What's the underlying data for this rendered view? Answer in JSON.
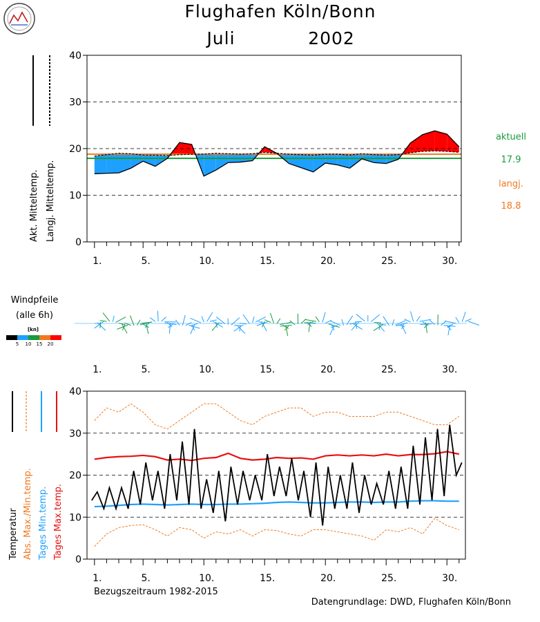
{
  "title_line1": "Flughafen Köln/Bonn",
  "title_month": "Juli",
  "title_year": "2002",
  "top_chart": {
    "type": "line",
    "ylim": [
      0,
      40
    ],
    "y_ticks": [
      "0",
      "10",
      "20",
      "30",
      "40"
    ],
    "x_ticks": [
      "1.",
      "5.",
      "10.",
      "15.",
      "20.",
      "25.",
      "30."
    ],
    "legend_actual_label": "Akt. Mitteltemp.",
    "legend_longterm_label": "Langj. Mitteltemp.",
    "right_label_actual": "aktuell",
    "right_value_actual": "17.9",
    "right_label_longterm": "langj.",
    "right_value_longterm": "18.8",
    "colors": {
      "above": "#ff0000",
      "below": "#1ea0ff",
      "actual_mean": "#1a9a3c",
      "longterm_mean": "#f07820"
    },
    "days": [
      1,
      2,
      3,
      4,
      5,
      6,
      7,
      8,
      9,
      10,
      11,
      12,
      13,
      14,
      15,
      16,
      17,
      18,
      19,
      20,
      21,
      22,
      23,
      24,
      25,
      26,
      27,
      28,
      29,
      30,
      31
    ],
    "actual_mean": [
      14.6,
      14.7,
      14.8,
      15.8,
      17.3,
      16.2,
      17.9,
      21.3,
      20.9,
      14.1,
      15.4,
      17.0,
      17.1,
      17.4,
      20.4,
      19.0,
      16.8,
      15.9,
      15.0,
      16.9,
      16.5,
      15.8,
      17.8,
      17.0,
      16.8,
      17.7,
      21.2,
      23.0,
      23.8,
      23.1,
      20.4
    ],
    "longterm_mean": [
      18.4,
      18.7,
      19.0,
      18.9,
      18.6,
      18.6,
      18.5,
      18.7,
      18.8,
      18.8,
      19.0,
      18.9,
      18.8,
      18.9,
      19.2,
      19.0,
      18.8,
      18.7,
      18.6,
      18.8,
      18.8,
      18.6,
      18.9,
      18.7,
      18.6,
      18.7,
      19.1,
      19.4,
      19.5,
      19.4,
      19.2
    ],
    "mean_actual_value": 17.9,
    "mean_longterm_value": 18.8
  },
  "wind": {
    "title_line1": "Windpfeile",
    "title_line2": "(alle 6h)",
    "unit": "[kn]",
    "scale_labels": [
      "5",
      "10",
      "15",
      "20"
    ],
    "scale_colors": [
      "#000000",
      "#1ea0ff",
      "#1a9a3c",
      "#f07820",
      "#ff0000"
    ],
    "x_ticks": [
      "1.",
      "5.",
      "10.",
      "15.",
      "20.",
      "25.",
      "30."
    ]
  },
  "bottom_chart": {
    "type": "line",
    "ylim": [
      0,
      40
    ],
    "y_ticks": [
      "0",
      "10",
      "20",
      "30",
      "40"
    ],
    "x_ticks": [
      "1.",
      "5.",
      "10.",
      "15.",
      "20.",
      "25.",
      "30."
    ],
    "legend_temp": "Temperatur",
    "legend_abs": "Abs. Max./Min.temp.",
    "legend_daily_min": "Tages Min.temp.",
    "legend_daily_max": "Tages Max.temp.",
    "colors": {
      "temp": "#000000",
      "abs": "#f07820",
      "daily_min": "#1ea0ff",
      "daily_max": "#e81010"
    },
    "days": [
      1,
      2,
      3,
      4,
      5,
      6,
      7,
      8,
      9,
      10,
      11,
      12,
      13,
      14,
      15,
      16,
      17,
      18,
      19,
      20,
      21,
      22,
      23,
      24,
      25,
      26,
      27,
      28,
      29,
      30,
      31
    ],
    "abs_max": [
      33,
      36,
      35,
      37,
      35,
      32,
      31,
      33,
      35,
      37,
      37,
      35,
      33,
      32,
      34,
      35,
      36,
      36,
      34,
      35,
      35,
      34,
      34,
      34,
      35,
      35,
      34,
      33,
      32,
      32,
      34
    ],
    "abs_min": [
      3,
      6,
      7.5,
      8,
      8.2,
      7,
      5.5,
      7.5,
      7,
      5,
      6.5,
      6,
      7,
      5.5,
      7,
      6.8,
      6,
      5.5,
      7,
      7,
      6.5,
      6,
      5.5,
      4.5,
      7,
      6.5,
      7.5,
      6,
      9.7,
      8,
      7
    ],
    "daily_max": [
      23.8,
      24.2,
      24.4,
      24.5,
      24.7,
      24.4,
      23.6,
      23.8,
      23.5,
      24.0,
      24.2,
      25.2,
      24.0,
      23.6,
      23.8,
      24.2,
      24.0,
      24.1,
      23.8,
      24.6,
      24.8,
      24.6,
      24.8,
      24.6,
      25.0,
      24.6,
      24.9,
      24.9,
      25.1,
      25.6,
      25.0
    ],
    "daily_min": [
      12.5,
      12.6,
      12.8,
      13.0,
      13.1,
      13.0,
      12.9,
      13.0,
      13.1,
      13.0,
      13.0,
      13.1,
      13.1,
      13.2,
      13.3,
      13.5,
      13.6,
      13.5,
      13.4,
      13.4,
      13.5,
      13.6,
      13.6,
      13.5,
      13.6,
      13.6,
      13.8,
      13.9,
      13.9,
      13.8,
      13.8
    ],
    "temp_min": [
      14,
      12,
      12,
      12,
      13,
      14,
      12,
      14,
      13,
      12,
      11,
      9,
      13,
      14,
      14,
      15,
      15,
      14,
      10,
      8,
      12,
      12,
      11,
      13,
      13,
      12,
      12,
      13,
      14,
      15,
      20
    ],
    "temp_max": [
      16,
      17,
      17,
      21,
      23,
      21,
      25,
      28,
      31,
      19,
      21,
      22,
      21,
      20,
      25,
      22,
      24,
      21,
      23,
      22,
      20,
      23,
      20,
      18,
      21,
      22,
      27,
      29,
      31,
      32,
      23
    ],
    "reference_period": "Bezugszeitraum 1982-2015",
    "source": "Datengrundlage: DWD, Flughafen Köln/Bonn"
  }
}
